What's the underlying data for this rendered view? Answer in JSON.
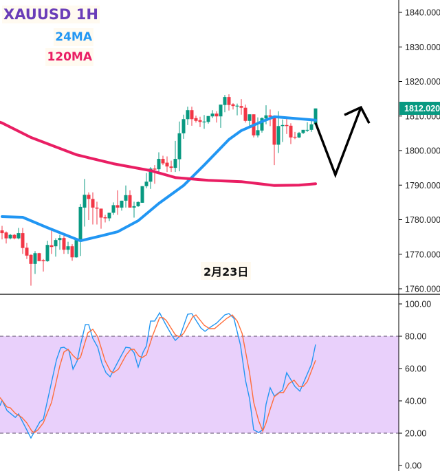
{
  "legend": {
    "title": "XAUUSD 1H",
    "ma24_label": "24MA",
    "ma120_label": "120MA",
    "title_color": "#6a3db8",
    "ma24_color": "#2196f3",
    "ma120_color": "#e91e63"
  },
  "date_label": "2月23日",
  "current_price": {
    "label": "1812.020",
    "value": 1812.02,
    "color": "#089981"
  },
  "colors": {
    "up": "#089981",
    "down": "#f23645",
    "stoch_k": "#2196f3",
    "stoch_d": "#ff6d3a",
    "band_fill": "#e9d0fb",
    "band_line": "#5a4a6a",
    "drawing": "#000000"
  },
  "chart_data": [
    {
      "type": "candlestick",
      "title": "XAUUSD 1H",
      "ylim": [
        1758,
        1843
      ],
      "y_ticks": [
        "1840.000",
        "1830.000",
        "1820.000",
        "1810.000",
        "1800.000",
        "1790.000",
        "1780.000",
        "1770.000",
        "1760.000"
      ],
      "y_tick_values": [
        1840,
        1830,
        1820,
        1810,
        1800,
        1790,
        1780,
        1770,
        1760
      ],
      "ohlc": [
        [
          1776.9,
          1778.2,
          1774.3,
          1776.1
        ],
        [
          1776.3,
          1776.6,
          1773.1,
          1774.6
        ],
        [
          1774.6,
          1775.9,
          1774.3,
          1775.6
        ],
        [
          1775.6,
          1775.9,
          1774.3,
          1774.6
        ],
        [
          1774.6,
          1777.6,
          1774.3,
          1776.1
        ],
        [
          1776.1,
          1777.6,
          1770.1,
          1771.8
        ],
        [
          1771.9,
          1773.3,
          1768.6,
          1769.6
        ],
        [
          1769.8,
          1770.0,
          1760.9,
          1767.2
        ],
        [
          1767.2,
          1770.9,
          1764.3,
          1770.3
        ],
        [
          1770.3,
          1770.4,
          1768.0,
          1768.0
        ],
        [
          1768.3,
          1768.6,
          1765.0,
          1768.0
        ],
        [
          1768.0,
          1773.9,
          1767.8,
          1772.7
        ],
        [
          1772.6,
          1777.6,
          1770.1,
          1772.1
        ],
        [
          1772.3,
          1774.6,
          1769.3,
          1774.1
        ],
        [
          1774.1,
          1775.6,
          1771.3,
          1774.7
        ],
        [
          1774.7,
          1775.3,
          1770.1,
          1771.3
        ],
        [
          1771.3,
          1773.6,
          1770.1,
          1772.3
        ],
        [
          1772.3,
          1772.9,
          1768.1,
          1769.1
        ],
        [
          1769.1,
          1774.6,
          1769.0,
          1774.1
        ],
        [
          1774.1,
          1784.5,
          1769.5,
          1783.7
        ],
        [
          1783.5,
          1791.8,
          1778.0,
          1787.2
        ],
        [
          1787.2,
          1787.9,
          1779.9,
          1786.0
        ],
        [
          1786.0,
          1787.9,
          1778.6,
          1783.5
        ],
        [
          1783.5,
          1785.2,
          1778.6,
          1783.2
        ],
        [
          1783.2,
          1783.2,
          1777.4,
          1780.6
        ],
        [
          1780.7,
          1781.4,
          1779.2,
          1780.4
        ],
        [
          1780.4,
          1782.0,
          1779.6,
          1782.0
        ],
        [
          1782.0,
          1785.0,
          1781.4,
          1784.2
        ],
        [
          1784.2,
          1788.5,
          1781.4,
          1783.5
        ],
        [
          1783.5,
          1785.5,
          1782.6,
          1785.5
        ],
        [
          1785.5,
          1789.9,
          1783.5,
          1787.1
        ],
        [
          1787.1,
          1788.5,
          1783.5,
          1783.5
        ],
        [
          1783.5,
          1785.2,
          1780.6,
          1783.9
        ],
        [
          1783.9,
          1785.3,
          1783.7,
          1785.1
        ],
        [
          1784.9,
          1789.7,
          1784.9,
          1789.7
        ],
        [
          1789.7,
          1793.5,
          1789.1,
          1791.0
        ],
        [
          1791.0,
          1795.2,
          1788.9,
          1794.8
        ],
        [
          1794.8,
          1795.8,
          1790.4,
          1794.5
        ],
        [
          1794.6,
          1799.5,
          1793.8,
          1797.6
        ],
        [
          1797.6,
          1798.5,
          1795.8,
          1796.3
        ],
        [
          1796.5,
          1798.3,
          1793.8,
          1795.4
        ],
        [
          1795.4,
          1797.1,
          1793.8,
          1795.0
        ],
        [
          1795.0,
          1802.8,
          1793.8,
          1797.6
        ],
        [
          1797.5,
          1808.4,
          1794.0,
          1805.0
        ],
        [
          1805.0,
          1810.4,
          1803.4,
          1809.1
        ],
        [
          1809.1,
          1812.7,
          1807.4,
          1811.7
        ],
        [
          1811.7,
          1812.7,
          1807.2,
          1809.1
        ],
        [
          1809.4,
          1810.1,
          1808.1,
          1808.6
        ],
        [
          1808.8,
          1809.8,
          1806.8,
          1808.3
        ],
        [
          1808.2,
          1810.3,
          1806.3,
          1808.4
        ],
        [
          1808.3,
          1810.0,
          1807.8,
          1810.0
        ],
        [
          1809.9,
          1811.7,
          1809.4,
          1810.7
        ],
        [
          1810.7,
          1811.4,
          1808.1,
          1809.9
        ],
        [
          1809.9,
          1813.3,
          1806.6,
          1813.3
        ],
        [
          1813.2,
          1816.1,
          1811.1,
          1815.5
        ],
        [
          1815.5,
          1816.3,
          1811.6,
          1813.2
        ],
        [
          1813.4,
          1813.7,
          1811.9,
          1812.9
        ],
        [
          1812.8,
          1813.6,
          1810.2,
          1813.0
        ],
        [
          1812.9,
          1814.9,
          1810.4,
          1812.4
        ],
        [
          1812.4,
          1813.3,
          1808.1,
          1808.6
        ],
        [
          1808.6,
          1810.5,
          1807.0,
          1810.5
        ],
        [
          1810.5,
          1810.5,
          1803.8,
          1804.4
        ],
        [
          1804.4,
          1809.6,
          1803.8,
          1805.9
        ],
        [
          1805.8,
          1809.6,
          1805.2,
          1809.4
        ],
        [
          1809.3,
          1813.1,
          1807.6,
          1810.2
        ],
        [
          1810.2,
          1811.9,
          1807.1,
          1809.8
        ],
        [
          1809.9,
          1809.9,
          1795.8,
          1801.7
        ],
        [
          1801.7,
          1811.4,
          1799.3,
          1807.1
        ],
        [
          1807.1,
          1809.0,
          1802.5,
          1807.4
        ],
        [
          1807.4,
          1809.6,
          1804.8,
          1807.1
        ],
        [
          1807.2,
          1807.9,
          1801.9,
          1803.8
        ],
        [
          1804.0,
          1805.4,
          1803.3,
          1803.8
        ],
        [
          1803.8,
          1805.4,
          1803.6,
          1805.1
        ],
        [
          1805.1,
          1806.0,
          1804.8,
          1806.0
        ],
        [
          1805.8,
          1808.2,
          1805.4,
          1806.0
        ],
        [
          1806.0,
          1808.8,
          1805.4,
          1807.6
        ],
        [
          1807.6,
          1812.2,
          1807.6,
          1812.2
        ]
      ],
      "series": [
        {
          "name": "24MA",
          "type": "line",
          "points": [
            [
              0,
              1780.9
            ],
            [
              5,
              1780.7
            ],
            [
              11,
              1777.7
            ],
            [
              16,
              1775.3
            ],
            [
              19,
              1773.9
            ],
            [
              24,
              1775.3
            ],
            [
              28,
              1776.5
            ],
            [
              33,
              1779.7
            ],
            [
              38,
              1784.7
            ],
            [
              44,
              1789.9
            ],
            [
              49,
              1795.8
            ],
            [
              55,
              1803.2
            ],
            [
              58,
              1805.8
            ],
            [
              63,
              1808.4
            ],
            [
              66,
              1809.8
            ],
            [
              72,
              1809.2
            ],
            [
              76,
              1808.8
            ]
          ]
        },
        {
          "name": "120MA",
          "type": "line",
          "points": [
            [
              -0.5,
              1808.2
            ],
            [
              0,
              1808.0
            ],
            [
              7,
              1803.8
            ],
            [
              18,
              1798.8
            ],
            [
              27,
              1796.2
            ],
            [
              36,
              1794.2
            ],
            [
              42,
              1792.2
            ],
            [
              50,
              1791.4
            ],
            [
              58,
              1791.0
            ],
            [
              66,
              1789.9
            ],
            [
              72,
              1790.0
            ],
            [
              76,
              1790.4
            ]
          ]
        }
      ],
      "annotation_drawing": {
        "type": "zigzag-arrow",
        "points": [
          [
            76,
            1808.0
          ],
          [
            80.8,
            1793.0
          ],
          [
            87,
            1812.5
          ]
        ],
        "arrowhead": true
      }
    },
    {
      "type": "line",
      "ylim": [
        0,
        100
      ],
      "y_ticks": [
        "100.00",
        "80.00",
        "60.00",
        "40.00",
        "20.00",
        "0.00"
      ],
      "y_tick_values": [
        100,
        80,
        60,
        40,
        20,
        0
      ],
      "band": [
        20,
        80
      ],
      "series": [
        {
          "type": "line",
          "role": "k",
          "points": [
            [
              -0.5,
              37.0
            ],
            [
              0,
              40.4
            ],
            [
              1.2,
              34.0
            ],
            [
              3.2,
              29.8
            ],
            [
              4,
              31.9
            ],
            [
              7,
              17.0
            ],
            [
              9.2,
              27.2
            ],
            [
              10,
              28.5
            ],
            [
              13.2,
              65.5
            ],
            [
              14.2,
              72.8
            ],
            [
              15,
              73.2
            ],
            [
              16.2,
              71.1
            ],
            [
              17.2,
              59.6
            ],
            [
              18.2,
              64.7
            ],
            [
              19,
              74.5
            ],
            [
              20.2,
              87.2
            ],
            [
              21,
              87.2
            ],
            [
              22,
              78.7
            ],
            [
              23.2,
              73.2
            ],
            [
              24.2,
              63.4
            ],
            [
              25.2,
              57.4
            ],
            [
              26.2,
              54.9
            ],
            [
              28.2,
              64.7
            ],
            [
              30,
              73.2
            ],
            [
              31,
              72.8
            ],
            [
              32,
              69.8
            ],
            [
              33,
              60.9
            ],
            [
              34.2,
              70.2
            ],
            [
              35,
              74.0
            ],
            [
              36,
              89.4
            ],
            [
              37,
              89.4
            ],
            [
              38.2,
              94.5
            ],
            [
              39.5,
              88.1
            ],
            [
              41.2,
              80.4
            ],
            [
              42,
              77.4
            ],
            [
              43.2,
              80.4
            ],
            [
              45,
              93.6
            ],
            [
              46,
              94.0
            ],
            [
              48.2,
              85.1
            ],
            [
              49.2,
              83.0
            ],
            [
              50.7,
              86.0
            ],
            [
              52,
              88.1
            ],
            [
              54,
              93.2
            ],
            [
              55,
              94.0
            ],
            [
              56.2,
              91.1
            ],
            [
              57.8,
              74.5
            ],
            [
              59,
              52.8
            ],
            [
              60,
              41.3
            ],
            [
              61,
              22.1
            ],
            [
              62.2,
              20.4
            ],
            [
              63.2,
              22.1
            ],
            [
              64,
              37.9
            ],
            [
              65,
              48.1
            ],
            [
              66,
              43.0
            ],
            [
              68,
              46.8
            ],
            [
              69,
              57.4
            ],
            [
              71,
              48.9
            ],
            [
              72.2,
              46.0
            ],
            [
              75,
              62.6
            ],
            [
              76,
              74.9
            ]
          ]
        },
        {
          "type": "line",
          "role": "d",
          "points": [
            [
              -0.5,
              42.1
            ],
            [
              1.2,
              36.2
            ],
            [
              2,
              35.7
            ],
            [
              3.2,
              32.3
            ],
            [
              4.8,
              29.8
            ],
            [
              6,
              26.4
            ],
            [
              7.2,
              21.3
            ],
            [
              7.8,
              20.4
            ],
            [
              8.7,
              22.1
            ],
            [
              10,
              26.4
            ],
            [
              12,
              39.1
            ],
            [
              14,
              61.7
            ],
            [
              15,
              70.2
            ],
            [
              16,
              71.9
            ],
            [
              17.2,
              68.1
            ],
            [
              18.3,
              65.5
            ],
            [
              19,
              66.8
            ],
            [
              20.8,
              82.1
            ],
            [
              22,
              84.3
            ],
            [
              23.2,
              79.6
            ],
            [
              25,
              64.7
            ],
            [
              26.3,
              58.3
            ],
            [
              27,
              57.4
            ],
            [
              28.2,
              59.6
            ],
            [
              30,
              68.1
            ],
            [
              31.2,
              71.9
            ],
            [
              32,
              71.9
            ],
            [
              33.2,
              67.7
            ],
            [
              34,
              66.8
            ],
            [
              35,
              68.5
            ],
            [
              36.5,
              80.4
            ],
            [
              38.2,
              91.5
            ],
            [
              39,
              91.5
            ],
            [
              39.8,
              89.8
            ],
            [
              42,
              80.9
            ],
            [
              43,
              79.6
            ],
            [
              44,
              81.7
            ],
            [
              46.2,
              91.9
            ],
            [
              47,
              93.2
            ],
            [
              49,
              86.8
            ],
            [
              50.3,
              84.7
            ],
            [
              51.5,
              84.7
            ],
            [
              54.5,
              91.1
            ],
            [
              55.8,
              93.2
            ],
            [
              57,
              89.4
            ],
            [
              58.2,
              81.7
            ],
            [
              60,
              57.4
            ],
            [
              61,
              39.1
            ],
            [
              62.2,
              27.7
            ],
            [
              63.2,
              21.3
            ],
            [
              64,
              26.4
            ],
            [
              65,
              34.9
            ],
            [
              66,
              42.6
            ],
            [
              67.3,
              45.1
            ],
            [
              68.2,
              45.1
            ],
            [
              69.5,
              50.6
            ],
            [
              70.8,
              52.8
            ],
            [
              72,
              48.9
            ],
            [
              73,
              48.9
            ],
            [
              74,
              51.9
            ],
            [
              76,
              65.1
            ]
          ]
        }
      ]
    }
  ]
}
